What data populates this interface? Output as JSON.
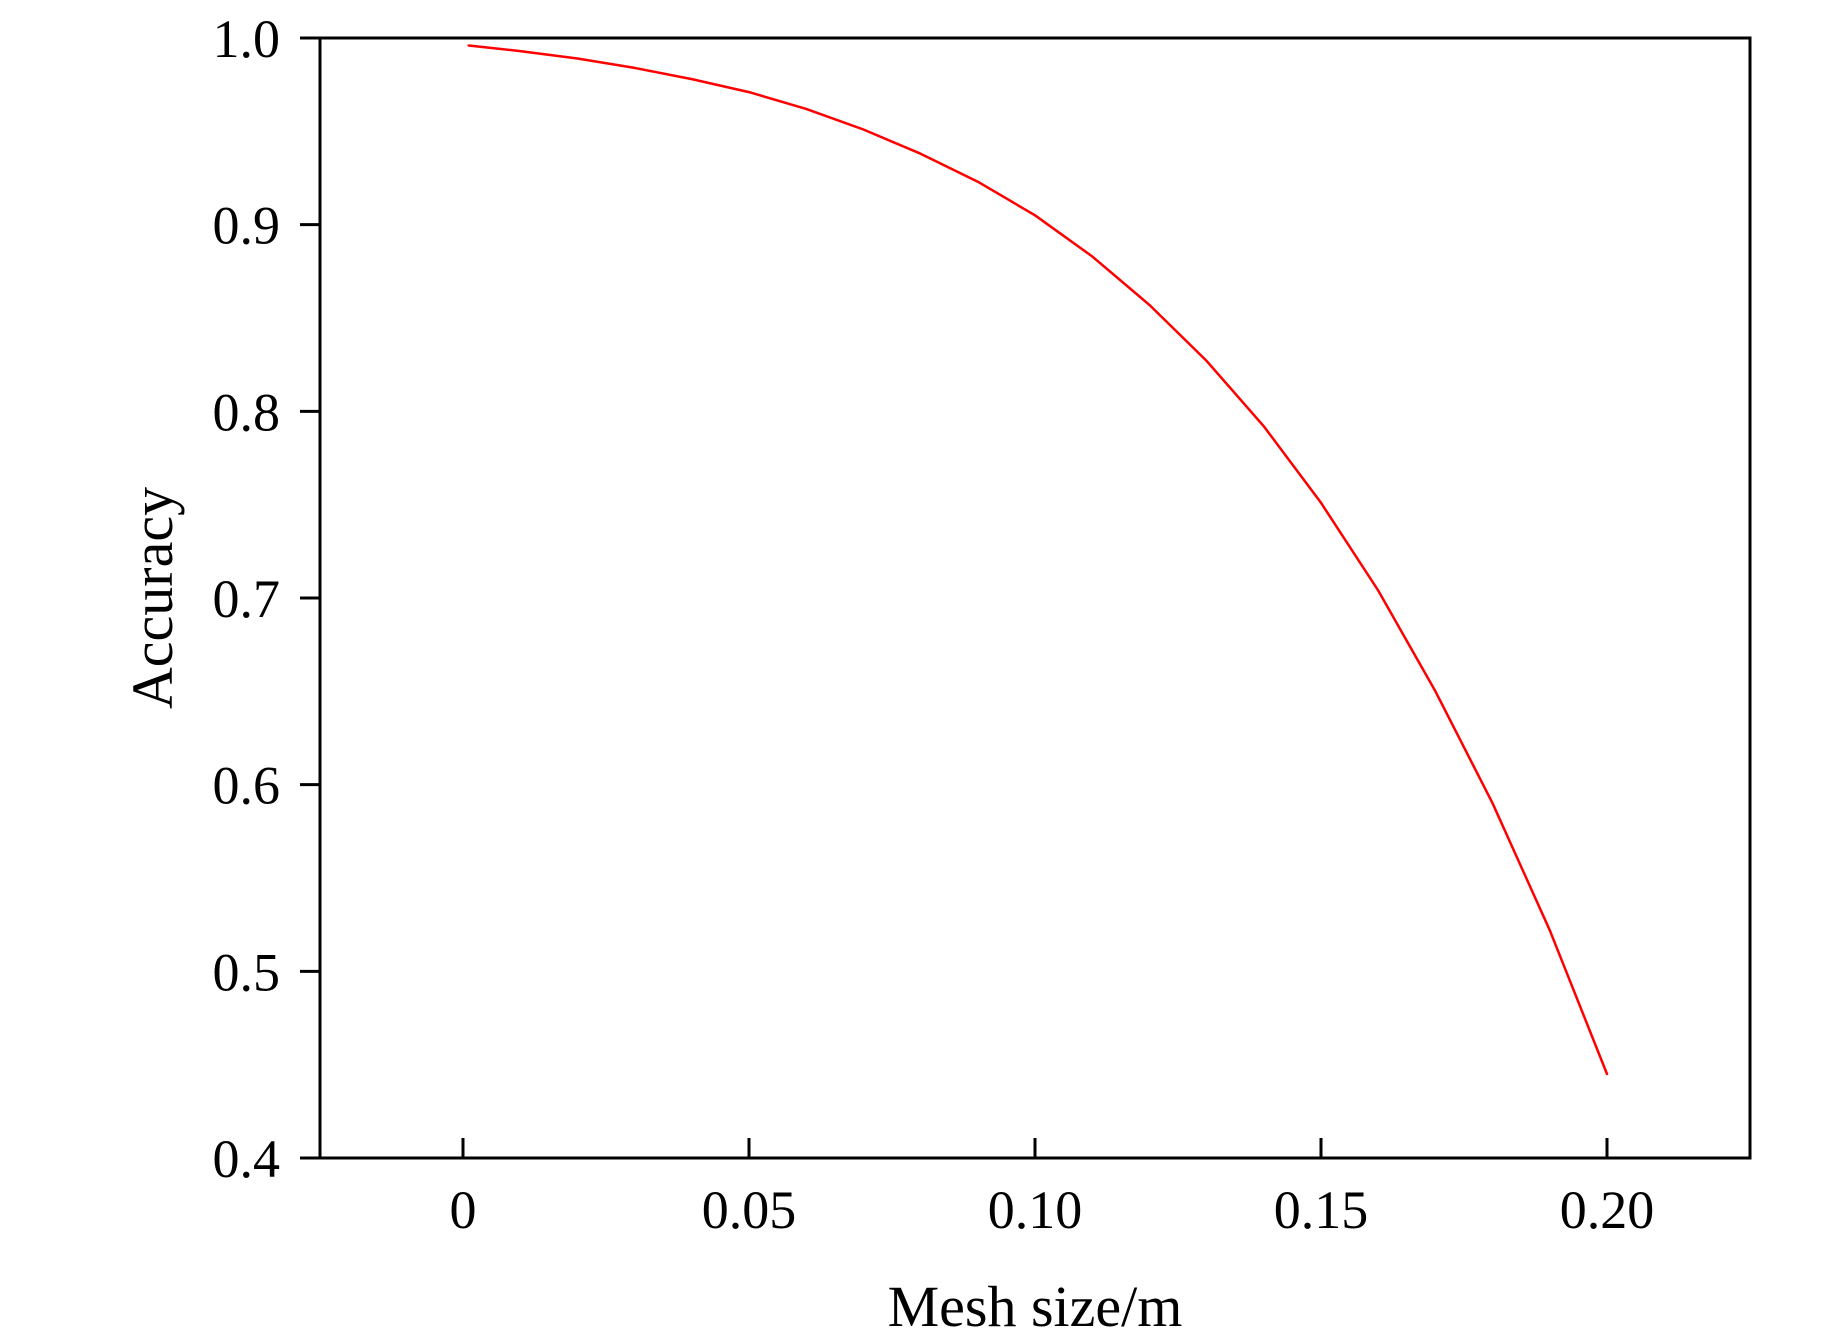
{
  "chart_data": {
    "type": "line",
    "xlabel": "Mesh size/m",
    "ylabel": "Accuracy",
    "xlim": [
      -0.025,
      0.225
    ],
    "ylim": [
      0.4,
      1.0
    ],
    "x_ticks": [
      0,
      0.05,
      0.1,
      0.15,
      0.2
    ],
    "x_tick_labels": [
      "0",
      "0.05",
      "0.10",
      "0.15",
      "0.20"
    ],
    "y_ticks": [
      0.4,
      0.5,
      0.6,
      0.7,
      0.8,
      0.9,
      1.0
    ],
    "y_tick_labels": [
      "0.4",
      "0.5",
      "0.6",
      "0.7",
      "0.8",
      "0.9",
      "1.0"
    ],
    "grid": false,
    "series": [
      {
        "color": "#ff0000",
        "x": [
          0.001,
          0.01,
          0.02,
          0.03,
          0.04,
          0.05,
          0.06,
          0.07,
          0.08,
          0.09,
          0.1,
          0.11,
          0.12,
          0.13,
          0.14,
          0.15,
          0.16,
          0.17,
          0.18,
          0.19,
          0.2
        ],
        "y": [
          0.996,
          0.993,
          0.989,
          0.984,
          0.978,
          0.971,
          0.962,
          0.951,
          0.938,
          0.923,
          0.905,
          0.883,
          0.857,
          0.827,
          0.792,
          0.751,
          0.704,
          0.65,
          0.59,
          0.522,
          0.445
        ]
      }
    ]
  }
}
